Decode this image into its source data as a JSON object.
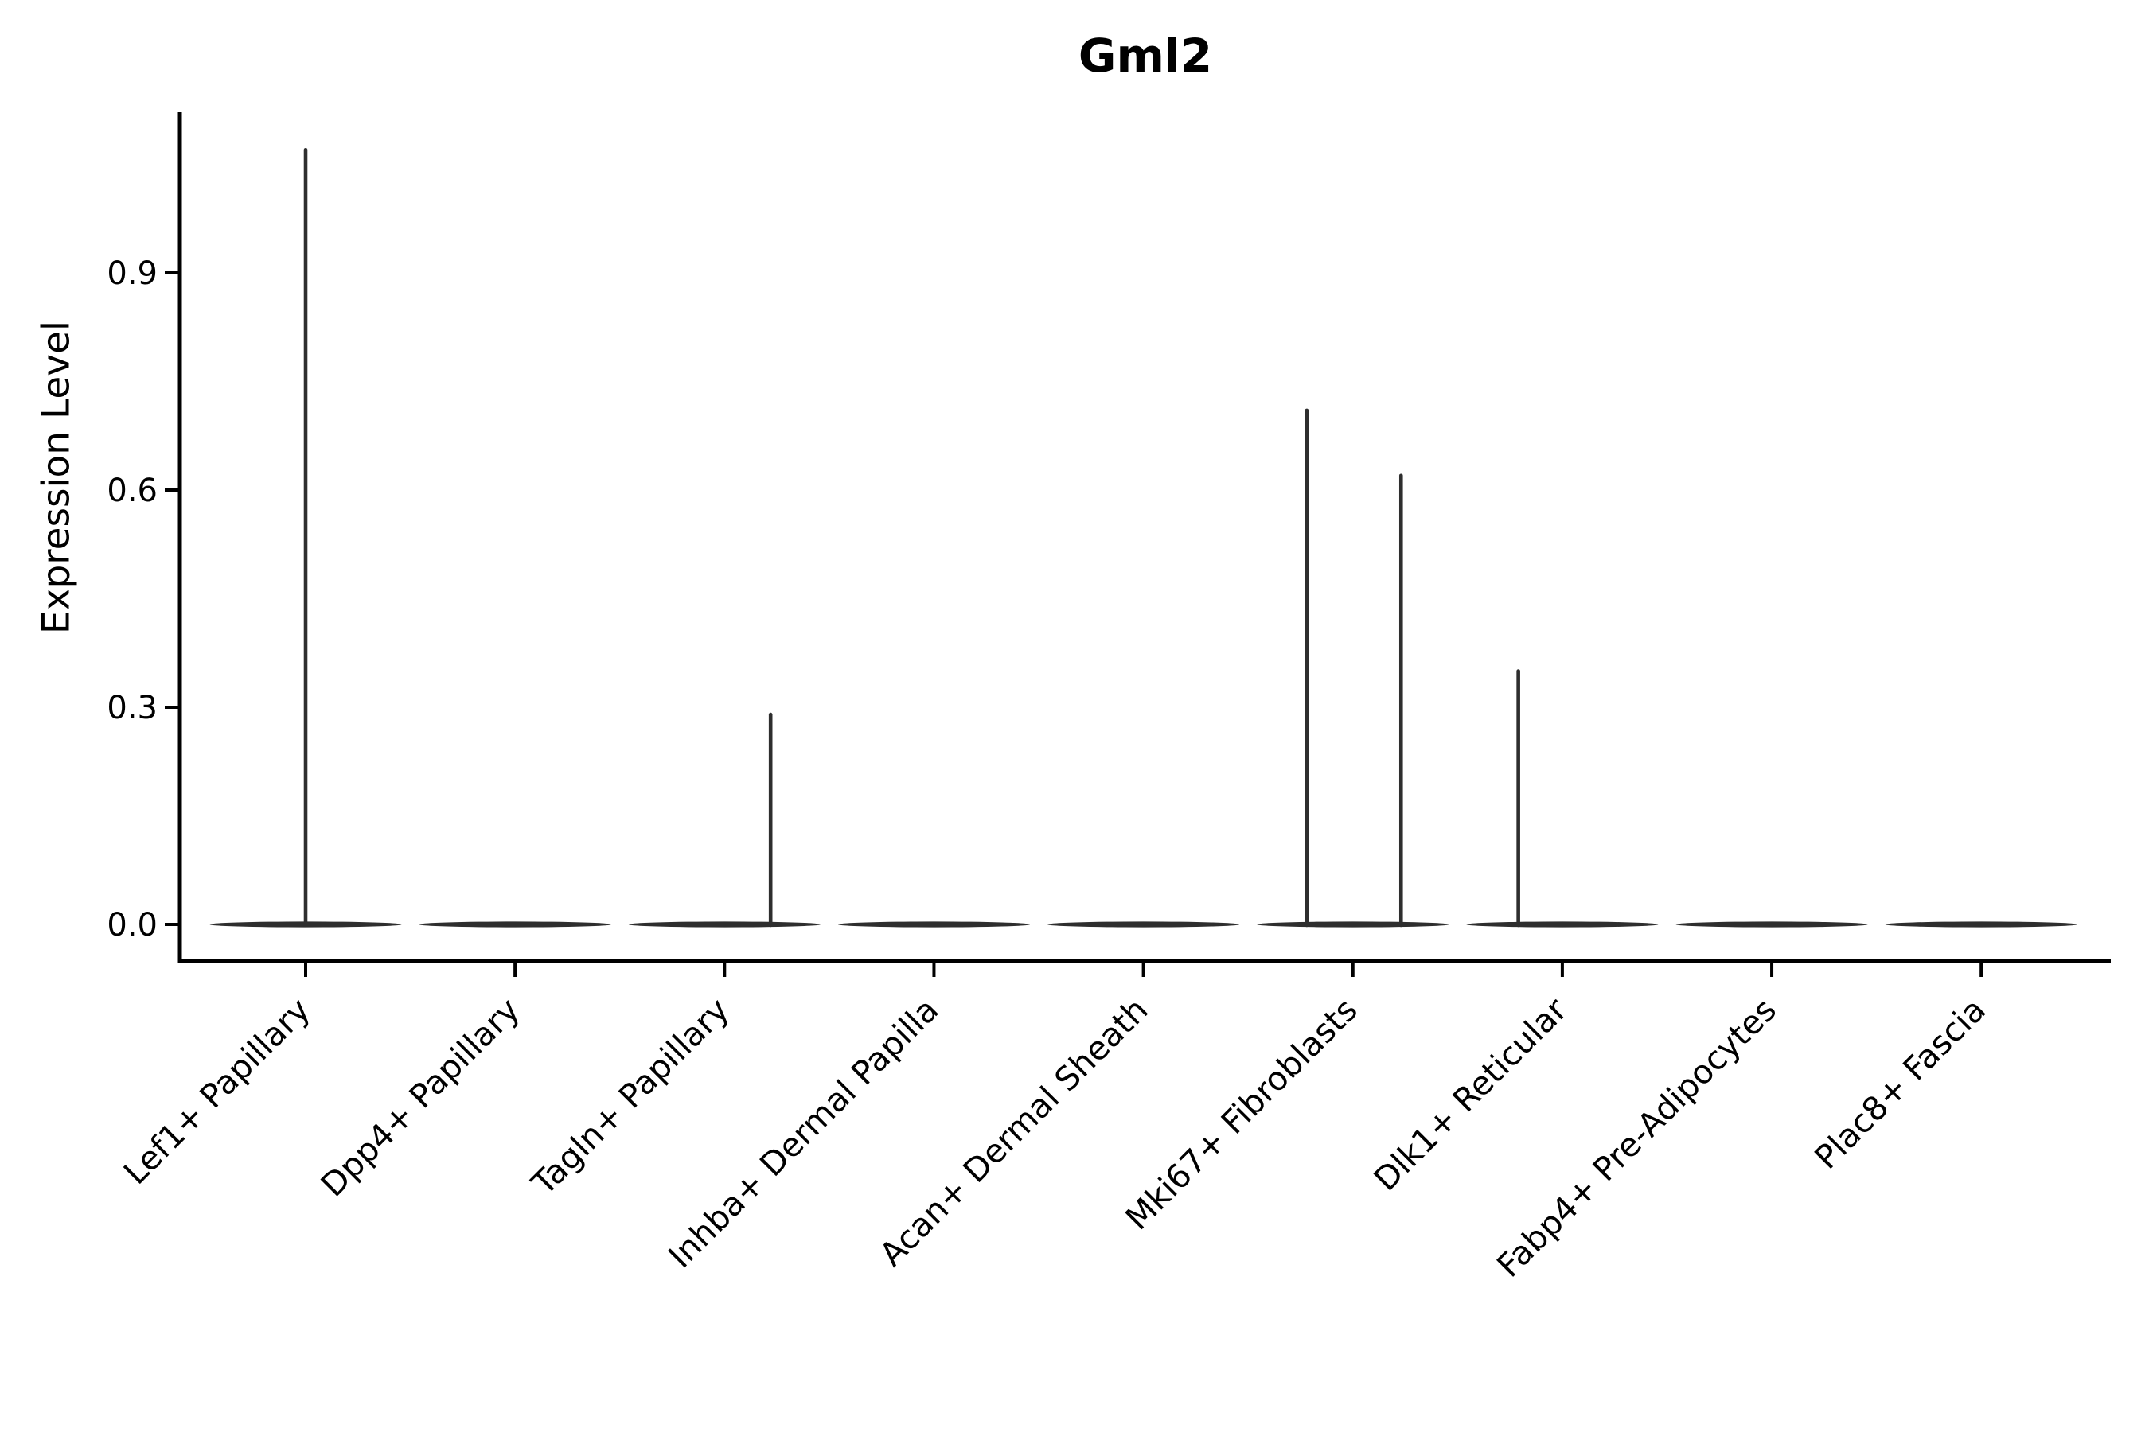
{
  "chart_data": {
    "type": "violin",
    "title": "Gml2",
    "ylabel": "Expression Level",
    "xlabel": "",
    "ylim": [
      0,
      1.12
    ],
    "yticks": [
      0.0,
      0.3,
      0.6,
      0.9
    ],
    "ytick_labels": [
      "0.0",
      "0.3",
      "0.6",
      "0.9"
    ],
    "grid": false,
    "legend": false,
    "categories": [
      "Lef1+ Papillary",
      "Dpp4+ Papillary",
      "Tagln+ Papillary",
      "Inhba+ Dermal Papilla",
      "Acan+ Dermal Sheath",
      "Mki67+ Fibroblasts",
      "Dlk1+ Reticular",
      "Fabp4+ Pre-Adipocytes",
      "Plac8+ Fascia"
    ],
    "violins": [
      {
        "category": "Lef1+ Papillary",
        "body_value": 0,
        "spikes": [
          {
            "value": 1.07,
            "offset_frac": 0.0
          }
        ]
      },
      {
        "category": "Dpp4+ Papillary",
        "body_value": 0,
        "spikes": []
      },
      {
        "category": "Tagln+ Papillary",
        "body_value": 0,
        "spikes": [
          {
            "value": 0.29,
            "offset_frac": 0.22
          }
        ]
      },
      {
        "category": "Inhba+ Dermal Papilla",
        "body_value": 0,
        "spikes": []
      },
      {
        "category": "Acan+ Dermal Sheath",
        "body_value": 0,
        "spikes": []
      },
      {
        "category": "Mki67+ Fibroblasts",
        "body_value": 0,
        "spikes": [
          {
            "value": 0.71,
            "offset_frac": -0.22
          },
          {
            "value": 0.62,
            "offset_frac": 0.23
          }
        ]
      },
      {
        "category": "Dlk1+ Reticular",
        "body_value": 0,
        "spikes": [
          {
            "value": 0.35,
            "offset_frac": -0.21
          }
        ]
      },
      {
        "category": "Fabp4+ Pre-Adipocytes",
        "body_value": 0,
        "spikes": []
      },
      {
        "category": "Plac8+ Fascia",
        "body_value": 0,
        "spikes": []
      }
    ],
    "colors": {
      "violin": "#2e2e2e",
      "axis": "#000000",
      "text": "#000000",
      "background": "#ffffff"
    }
  }
}
